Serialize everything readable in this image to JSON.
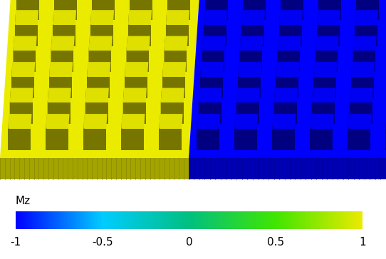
{
  "chart_data": {
    "type": "colormap_render",
    "domain_mz": [
      1,
      -1
    ],
    "colorbar": {
      "label": "Mz",
      "range": [
        -1,
        1
      ],
      "ticks": [
        -1,
        -0.5,
        0,
        0.5,
        1
      ]
    }
  }
}
